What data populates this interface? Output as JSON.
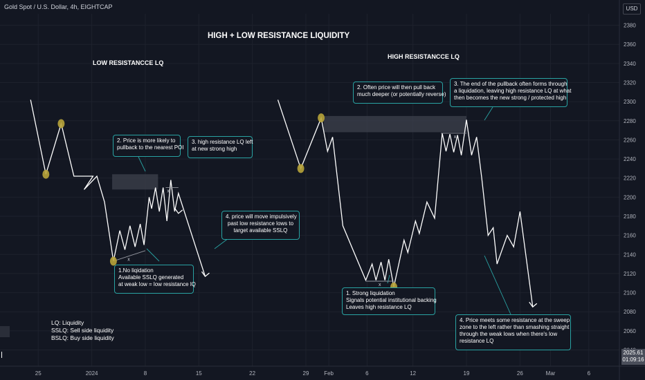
{
  "header": {
    "symbol_title": "Gold Spot / U.S. Dollar, 4h, EIGHTCAP",
    "currency": "USD",
    "price_value": "2025.61",
    "countdown": "01:09:16"
  },
  "headline": "HIGH + LOW RESISTANCE LIQUIDITY",
  "sections": {
    "left": "LOW RESISTANCCE LQ",
    "right": "HIGH RESISTANCCE LQ"
  },
  "notes": {
    "n_left_2": [
      "2. Price is more likely to",
      "pullback to the nearest POI"
    ],
    "n_left_3": [
      "3. high resistance LQ left",
      "at new strong high"
    ],
    "n_left_4": [
      "4. price will move impulsively",
      "past low resistance lows to",
      "target available SSLQ"
    ],
    "n_left_1": [
      "1.No liqidation",
      "Available SSLQ generated",
      "at weak low = low resistance lQ"
    ],
    "n_right_2": [
      "2. Often price will then pull back",
      "much deeper (or potentially reverse)"
    ],
    "n_right_3": [
      "3. The end of the pullback often forms through",
      "a liquidation, leaving high resistance LQ at what",
      "then becomes the new strong / protected high"
    ],
    "n_right_1": [
      "1. Strong liquidation",
      "Signals potential institutional backing",
      "Leaves high resistance LQ"
    ],
    "n_right_4": [
      "4. Price meets some resistance at the sweep",
      "zone to the left rather than smashing straight",
      "through the weak lows when there's low",
      "resistance LQ"
    ]
  },
  "legend": [
    "LQ: Liquidity",
    "SSLQ: Sell side liquidity",
    "BSLQ: Buy side liquidity"
  ],
  "sweep_marker": "x",
  "colors": {
    "background": "#131722",
    "grid": "#1e222d",
    "price_line": "#ffffff",
    "poi_zone": "#3b3f4a",
    "liquidity_dot": "#b8a43a",
    "note_border": "#29a3a3",
    "axis_text": "#b2b5be"
  },
  "chart_data": {
    "type": "line",
    "title": "HIGH + LOW RESISTANCE LIQUIDITY",
    "xlabel": "",
    "ylabel": "",
    "y_ticks": [
      2040,
      2060,
      2080,
      2100,
      2120,
      2140,
      2160,
      2180,
      2200,
      2220,
      2240,
      2260,
      2280,
      2300,
      2320,
      2340,
      2360,
      2380
    ],
    "ylim": [
      2023,
      2392
    ],
    "x_ticks": [
      {
        "label": "25",
        "date": "2023-12-25"
      },
      {
        "label": "2024",
        "date": "2024-01-01"
      },
      {
        "label": "8",
        "date": "2024-01-08"
      },
      {
        "label": "15",
        "date": "2024-01-15"
      },
      {
        "label": "22",
        "date": "2024-01-22"
      },
      {
        "label": "29",
        "date": "2024-01-29"
      },
      {
        "label": "Feb",
        "date": "2024-02-01"
      },
      {
        "label": "6",
        "date": "2024-02-06"
      },
      {
        "label": "12",
        "date": "2024-02-12"
      },
      {
        "label": "19",
        "date": "2024-02-19"
      },
      {
        "label": "26",
        "date": "2024-02-26"
      },
      {
        "label": "Mar",
        "date": "2024-03-01"
      },
      {
        "label": "6",
        "date": "2024-03-06"
      }
    ],
    "xlim": [
      "2023-12-20",
      "2024-03-10"
    ],
    "grid": true,
    "series": [
      {
        "name": "",
        "points": [
          [
            "2023-12-24",
            2302
          ],
          [
            "2023-12-26",
            2224
          ],
          [
            "2023-12-28",
            2277
          ],
          [
            "2023-12-29 16:00",
            2222
          ],
          [
            "2024-01-01 04:00",
            2222
          ],
          [
            "2023-12-31",
            2208
          ],
          [
            "2024-01-01 16:00",
            2222
          ],
          [
            "2024-01-02 16:00",
            2195
          ],
          [
            "2024-01-03 20:00",
            2133
          ],
          [
            "2024-01-04 16:00",
            2165
          ],
          [
            "2024-01-05 08:00",
            2145
          ],
          [
            "2024-01-06",
            2170
          ],
          [
            "2024-01-06 16:00",
            2148
          ],
          [
            "2024-01-07 08:00",
            2172
          ],
          [
            "2024-01-07 20:00",
            2150
          ],
          [
            "2024-01-08 12:00",
            2200
          ],
          [
            "2024-01-08 20:00",
            2188
          ],
          [
            "2024-01-09 08:00",
            2210
          ],
          [
            "2024-01-09 20:00",
            2185
          ],
          [
            "2024-01-10 08:00",
            2210
          ],
          [
            "2024-01-10 20:00",
            2175
          ],
          [
            "2024-01-11 08:00",
            2218
          ],
          [
            "2024-01-11 20:00",
            2185
          ],
          [
            "2024-01-12 08:00",
            2204
          ],
          [
            "2024-01-15 20:00",
            2117
          ]
        ]
      },
      {
        "name": "",
        "points": [
          [
            "2024-01-25 08:00",
            2302
          ],
          [
            "2024-01-28 08:00",
            2230
          ],
          [
            "2024-01-31",
            2283
          ],
          [
            "2024-01-31 20:00",
            2248
          ],
          [
            "2024-02-01 12:00",
            2263
          ],
          [
            "2024-02-02 20:00",
            2170
          ],
          [
            "2024-02-05 20:00",
            2113
          ],
          [
            "2024-02-06 16:00",
            2130
          ],
          [
            "2024-02-07 04:00",
            2113
          ],
          [
            "2024-02-07 20:00",
            2132
          ],
          [
            "2024-02-08 08:00",
            2113
          ],
          [
            "2024-02-08 20:00",
            2135
          ],
          [
            "2024-02-09 12:00",
            2106
          ],
          [
            "2024-02-10 20:00",
            2155
          ],
          [
            "2024-02-11 08:00",
            2142
          ],
          [
            "2024-02-12 08:00",
            2175
          ],
          [
            "2024-02-12 20:00",
            2162
          ],
          [
            "2024-02-13 20:00",
            2195
          ],
          [
            "2024-02-14 20:00",
            2178
          ],
          [
            "2024-02-15 20:00",
            2267
          ],
          [
            "2024-02-16 08:00",
            2248
          ],
          [
            "2024-02-16 20:00",
            2266
          ],
          [
            "2024-02-17 08:00",
            2247
          ],
          [
            "2024-02-17 20:00",
            2265
          ],
          [
            "2024-02-18 08:00",
            2244
          ],
          [
            "2024-02-19",
            2281
          ],
          [
            "2024-02-19 16:00",
            2244
          ],
          [
            "2024-02-20 08:00",
            2263
          ],
          [
            "2024-02-21",
            2220
          ],
          [
            "2024-02-21 20:00",
            2160
          ],
          [
            "2024-02-22 12:00",
            2168
          ],
          [
            "2024-02-23",
            2130
          ],
          [
            "2024-02-24 08:00",
            2160
          ],
          [
            "2024-02-25 04:00",
            2148
          ],
          [
            "2024-02-26",
            2185
          ],
          [
            "2024-02-27 16:00",
            2085
          ]
        ]
      }
    ],
    "zones": [
      {
        "from": "2024-01-03 16:00",
        "to": "2024-01-09 16:00",
        "low": 2208,
        "high": 2224
      },
      {
        "from": "2024-01-31 08:00",
        "to": "2024-02-19",
        "low": 2268,
        "high": 2285
      }
    ],
    "liquidity_points": [
      [
        "2023-12-26",
        2224
      ],
      [
        "2023-12-28",
        2277
      ],
      [
        "2024-01-03 20:00",
        2133
      ],
      [
        "2024-01-28 08:00",
        2230
      ],
      [
        "2024-01-31",
        2283
      ],
      [
        "2024-02-09 12:00",
        2106
      ]
    ],
    "liquidity_lines": [
      {
        "from": "2024-01-03 20:00",
        "to": "2024-01-08",
        "y_from": 2133,
        "y_to": 2144,
        "marker": "2024-01-05 20:00"
      },
      {
        "from": "2024-01-10 16:00",
        "to": "2024-01-12 08:00",
        "y_from": 2210,
        "y_to": 2210,
        "marker": "2024-01-11"
      },
      {
        "from": "2024-02-05 20:00",
        "to": "2024-02-09 12:00",
        "y_from": 2112,
        "y_to": 2112,
        "marker": "2024-02-07 16:00"
      },
      {
        "from": "2024-02-15 16:00",
        "to": "2024-02-19",
        "y_from": 2267,
        "y_to": 2267,
        "marker": "2024-02-17 12:00"
      }
    ],
    "arrows": [
      {
        "from": [
          "2024-01-11 20:00",
          2185
        ],
        "to": [
          "2024-01-12 08:00",
          2183
        ]
      },
      {
        "from": [
          "2024-01-15 20:00",
          2117
        ],
        "to": [
          "2024-01-15 20:00",
          2117
        ]
      },
      {
        "from": [
          "2024-02-27 16:00",
          2085
        ],
        "to": [
          "2024-02-27 16:00",
          2085
        ]
      }
    ]
  }
}
